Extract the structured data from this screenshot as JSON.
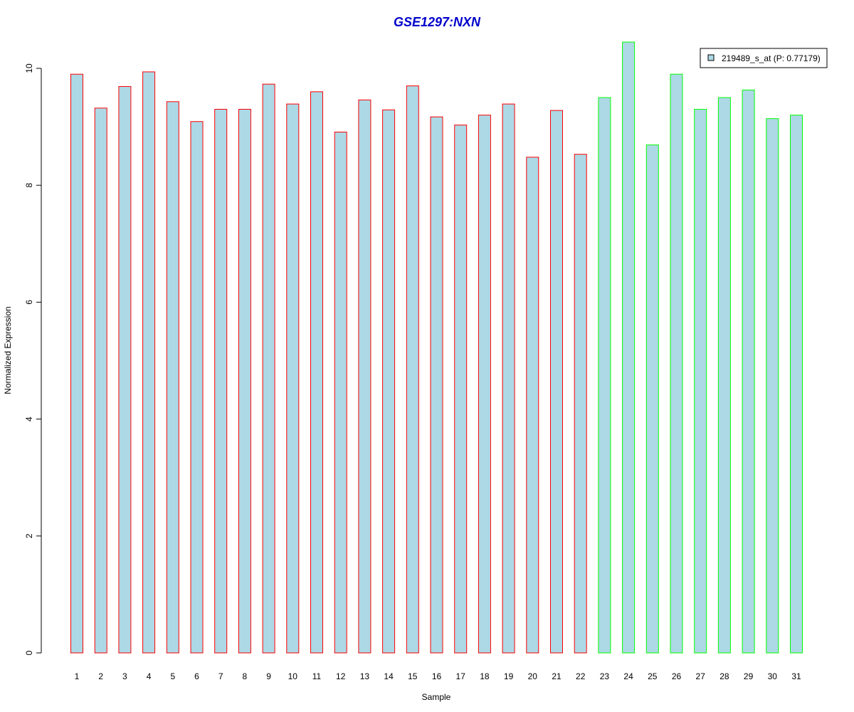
{
  "chart_data": {
    "type": "bar",
    "title": "GSE1297:NXN",
    "title_color": "#0000cc",
    "xlabel": "Sample",
    "ylabel": "Normalized Expression",
    "ylim": [
      0,
      10.5
    ],
    "yticks": [
      0,
      2,
      4,
      6,
      8,
      10
    ],
    "grid": false,
    "legend_position": "top-right",
    "bar_fill": "#add8e6",
    "categories": [
      "1",
      "2",
      "3",
      "4",
      "5",
      "6",
      "7",
      "8",
      "9",
      "10",
      "11",
      "12",
      "13",
      "14",
      "15",
      "16",
      "17",
      "18",
      "19",
      "20",
      "21",
      "22",
      "23",
      "24",
      "25",
      "26",
      "27",
      "28",
      "29",
      "30",
      "31"
    ],
    "values": [
      9.9,
      9.32,
      9.69,
      9.94,
      9.43,
      9.09,
      9.3,
      9.3,
      9.73,
      9.39,
      9.6,
      8.91,
      9.46,
      9.29,
      9.7,
      9.17,
      9.03,
      9.2,
      9.39,
      8.48,
      9.28,
      8.53,
      9.5,
      10.45,
      8.69,
      9.9,
      9.3,
      9.5,
      9.63,
      9.14,
      9.2
    ],
    "bar_outline_colors": [
      "#ff0000",
      "#ff0000",
      "#ff0000",
      "#ff0000",
      "#ff0000",
      "#ff0000",
      "#ff0000",
      "#ff0000",
      "#ff0000",
      "#ff0000",
      "#ff0000",
      "#ff0000",
      "#ff0000",
      "#ff0000",
      "#ff0000",
      "#ff0000",
      "#ff0000",
      "#ff0000",
      "#ff0000",
      "#ff0000",
      "#ff0000",
      "#ff0000",
      "#00ff00",
      "#00ff00",
      "#00ff00",
      "#00ff00",
      "#00ff00",
      "#00ff00",
      "#00ff00",
      "#00ff00",
      "#00ff00"
    ],
    "series": [
      {
        "name": "219489_s_at (P: 0.77179)"
      }
    ]
  }
}
